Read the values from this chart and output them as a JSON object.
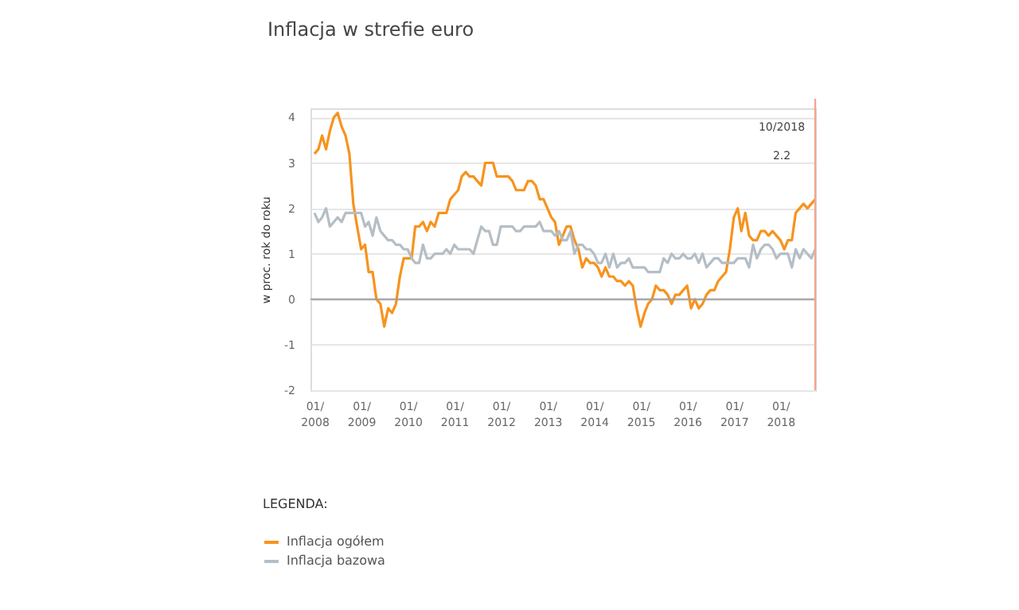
{
  "chart_data": {
    "type": "line",
    "title": "Inflacja w strefie euro",
    "ylabel": "w proc. rok do roku",
    "legend_title": "LEGENDA:",
    "legend": "bottom",
    "grid": "y",
    "marker": "none",
    "line_style": "solid",
    "x": [
      "2008-01",
      "2008-02",
      "2008-03",
      "2008-04",
      "2008-05",
      "2008-06",
      "2008-07",
      "2008-08",
      "2008-09",
      "2008-10",
      "2008-11",
      "2008-12",
      "2009-01",
      "2009-02",
      "2009-03",
      "2009-04",
      "2009-05",
      "2009-06",
      "2009-07",
      "2009-08",
      "2009-09",
      "2009-10",
      "2009-11",
      "2009-12",
      "2010-01",
      "2010-02",
      "2010-03",
      "2010-04",
      "2010-05",
      "2010-06",
      "2010-07",
      "2010-08",
      "2010-09",
      "2010-10",
      "2010-11",
      "2010-12",
      "2011-01",
      "2011-02",
      "2011-03",
      "2011-04",
      "2011-05",
      "2011-06",
      "2011-07",
      "2011-08",
      "2011-09",
      "2011-10",
      "2011-11",
      "2011-12",
      "2012-01",
      "2012-02",
      "2012-03",
      "2012-04",
      "2012-05",
      "2012-06",
      "2012-07",
      "2012-08",
      "2012-09",
      "2012-10",
      "2012-11",
      "2012-12",
      "2013-01",
      "2013-02",
      "2013-03",
      "2013-04",
      "2013-05",
      "2013-06",
      "2013-07",
      "2013-08",
      "2013-09",
      "2013-10",
      "2013-11",
      "2013-12",
      "2014-01",
      "2014-02",
      "2014-03",
      "2014-04",
      "2014-05",
      "2014-06",
      "2014-07",
      "2014-08",
      "2014-09",
      "2014-10",
      "2014-11",
      "2014-12",
      "2015-01",
      "2015-02",
      "2015-03",
      "2015-04",
      "2015-05",
      "2015-06",
      "2015-07",
      "2015-08",
      "2015-09",
      "2015-10",
      "2015-11",
      "2015-12",
      "2016-01",
      "2016-02",
      "2016-03",
      "2016-04",
      "2016-05",
      "2016-06",
      "2016-07",
      "2016-08",
      "2016-09",
      "2016-10",
      "2016-11",
      "2016-12",
      "2017-01",
      "2017-02",
      "2017-03",
      "2017-04",
      "2017-05",
      "2017-06",
      "2017-07",
      "2017-08",
      "2017-09",
      "2017-10",
      "2017-11",
      "2017-12",
      "2018-01",
      "2018-02",
      "2018-03",
      "2018-04",
      "2018-05",
      "2018-06",
      "2018-07",
      "2018-08",
      "2018-09",
      "2018-10"
    ],
    "series": [
      {
        "name": "Inflacja ogółem",
        "color": "#f7931e",
        "values": [
          3.2,
          3.3,
          3.6,
          3.3,
          3.7,
          4.0,
          4.1,
          3.8,
          3.6,
          3.2,
          2.1,
          1.6,
          1.1,
          1.2,
          0.6,
          0.6,
          0.0,
          -0.1,
          -0.6,
          -0.2,
          -0.3,
          -0.1,
          0.5,
          0.9,
          0.9,
          0.9,
          1.6,
          1.6,
          1.7,
          1.5,
          1.7,
          1.6,
          1.9,
          1.9,
          1.9,
          2.2,
          2.3,
          2.4,
          2.7,
          2.8,
          2.7,
          2.7,
          2.6,
          2.5,
          3.0,
          3.0,
          3.0,
          2.7,
          2.7,
          2.7,
          2.7,
          2.6,
          2.4,
          2.4,
          2.4,
          2.6,
          2.6,
          2.5,
          2.2,
          2.2,
          2.0,
          1.8,
          1.7,
          1.2,
          1.4,
          1.6,
          1.6,
          1.3,
          1.1,
          0.7,
          0.9,
          0.8,
          0.8,
          0.7,
          0.5,
          0.7,
          0.5,
          0.5,
          0.4,
          0.4,
          0.3,
          0.4,
          0.3,
          -0.2,
          -0.6,
          -0.3,
          -0.1,
          0.0,
          0.3,
          0.2,
          0.2,
          0.1,
          -0.1,
          0.1,
          0.1,
          0.2,
          0.3,
          -0.2,
          0.0,
          -0.2,
          -0.1,
          0.1,
          0.2,
          0.2,
          0.4,
          0.5,
          0.6,
          1.1,
          1.8,
          2.0,
          1.5,
          1.9,
          1.4,
          1.3,
          1.3,
          1.5,
          1.5,
          1.4,
          1.5,
          1.4,
          1.3,
          1.1,
          1.3,
          1.3,
          1.9,
          2.0,
          2.1,
          2.0,
          2.1,
          2.2
        ]
      },
      {
        "name": "Inflacja bazowa",
        "color": "#b4bec6",
        "values": [
          1.9,
          1.7,
          1.8,
          2.0,
          1.6,
          1.7,
          1.8,
          1.7,
          1.9,
          1.9,
          1.9,
          1.9,
          1.9,
          1.6,
          1.7,
          1.4,
          1.8,
          1.5,
          1.4,
          1.3,
          1.3,
          1.2,
          1.2,
          1.1,
          1.1,
          0.9,
          0.8,
          0.8,
          1.2,
          0.9,
          0.9,
          1.0,
          1.0,
          1.0,
          1.1,
          1.0,
          1.2,
          1.1,
          1.1,
          1.1,
          1.1,
          1.0,
          1.3,
          1.6,
          1.5,
          1.5,
          1.2,
          1.2,
          1.6,
          1.6,
          1.6,
          1.6,
          1.5,
          1.5,
          1.6,
          1.6,
          1.6,
          1.6,
          1.7,
          1.5,
          1.5,
          1.5,
          1.4,
          1.5,
          1.3,
          1.3,
          1.5,
          1.0,
          1.2,
          1.2,
          1.1,
          1.1,
          1.0,
          0.8,
          0.8,
          1.0,
          0.7,
          1.0,
          0.7,
          0.8,
          0.8,
          0.9,
          0.7,
          0.7,
          0.7,
          0.7,
          0.6,
          0.6,
          0.6,
          0.6,
          0.9,
          0.8,
          1.0,
          0.9,
          0.9,
          1.0,
          0.9,
          0.9,
          1.0,
          0.8,
          1.0,
          0.7,
          0.8,
          0.9,
          0.9,
          0.8,
          0.8,
          0.8,
          0.8,
          0.9,
          0.9,
          0.9,
          0.7,
          1.2,
          0.9,
          1.1,
          1.2,
          1.2,
          1.1,
          0.9,
          1.0,
          1.0,
          1.0,
          0.7,
          1.1,
          0.9,
          1.1,
          1.0,
          0.9,
          1.1
        ]
      }
    ],
    "xlim": [
      "2007-12",
      "2018-10"
    ],
    "xticks": [
      {
        "value": "2008-01",
        "label": "01/\n2008"
      },
      {
        "value": "2009-01",
        "label": "01/\n2009"
      },
      {
        "value": "2010-01",
        "label": "01/\n2010"
      },
      {
        "value": "2011-01",
        "label": "01/\n2011"
      },
      {
        "value": "2012-01",
        "label": "01/\n2012"
      },
      {
        "value": "2013-01",
        "label": "01/\n2013"
      },
      {
        "value": "2014-01",
        "label": "01/\n2014"
      },
      {
        "value": "2015-01",
        "label": "01/\n2015"
      },
      {
        "value": "2016-01",
        "label": "01/\n2016"
      },
      {
        "value": "2017-01",
        "label": "01/\n2017"
      },
      {
        "value": "2018-01",
        "label": "01/\n2018"
      }
    ],
    "ylim": [
      -2,
      4.2
    ],
    "yticks": [
      -2,
      -1,
      0,
      1,
      2,
      3,
      4
    ],
    "ref_lines": [
      {
        "axis": "y",
        "value": 0,
        "color": "#a0a0a0"
      },
      {
        "axis": "x",
        "value": "2018-10",
        "color": "#f4a68c"
      }
    ],
    "annotations": [
      "10/2018",
      "2.2"
    ]
  }
}
